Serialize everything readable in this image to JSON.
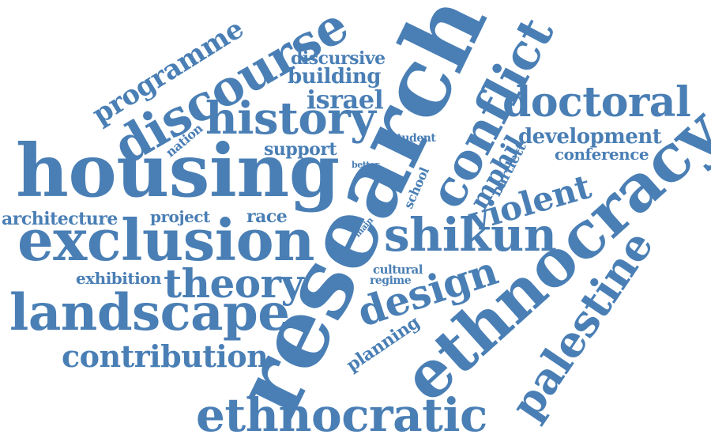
{
  "color": "#4a7fb5",
  "words": {
    "research": "research",
    "housing": "housing",
    "exclusion": "exclusion",
    "ethnocracy": "ethnocracy",
    "landscape": "landscape",
    "ethnocratic": "ethnocratic",
    "discourse": "discourse",
    "history": "history",
    "doctoral": "doctoral",
    "conflict": "conflict",
    "shikun": "shikun",
    "palestine": "palestine",
    "design": "design",
    "theory": "theory",
    "violent": "violent",
    "contribution": "contribution",
    "programme": "programme",
    "mphil": "mphil",
    "israel": "israel",
    "development": "development",
    "architecture": "architecture",
    "building": "building",
    "discursive": "discursive",
    "conference": "conference",
    "support": "support",
    "planning": "planning",
    "exhibition": "exhibition",
    "project": "project",
    "race": "race",
    "nation": "nation",
    "bartlett": "bartlett",
    "school": "school",
    "student": "student",
    "cultural": "cultural",
    "regime": "regime",
    "better": "better",
    "main": "main"
  }
}
